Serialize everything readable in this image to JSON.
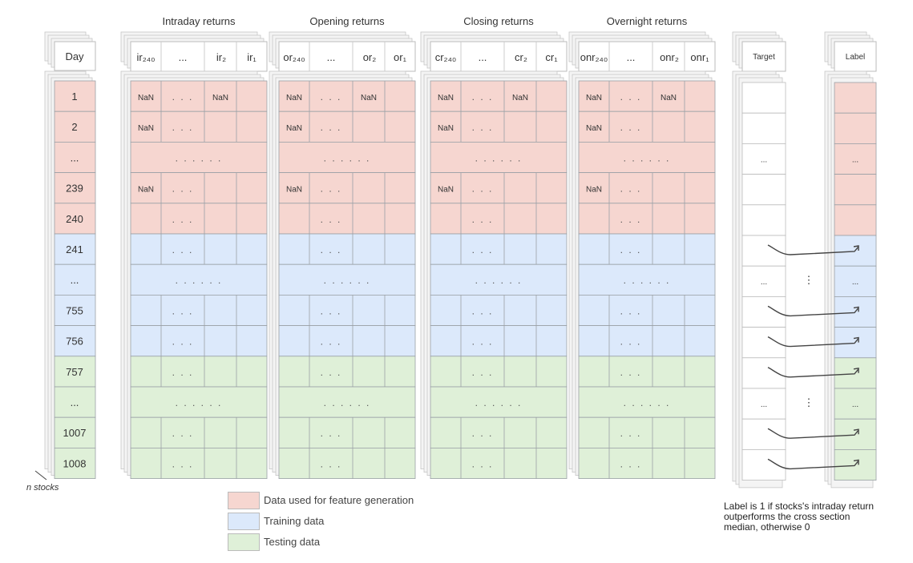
{
  "group_titles": [
    "Intraday returns",
    "Opening returns",
    "Closing returns",
    "Overnight returns"
  ],
  "group_headers": [
    [
      "ir₂₄₀",
      "...",
      "ir₂",
      "ir₁"
    ],
    [
      "or₂₄₀",
      "...",
      "or₂",
      "or₁"
    ],
    [
      "cr₂₄₀",
      "...",
      "cr₂",
      "cr₁"
    ],
    [
      "onr₂₄₀",
      "...",
      "onr₂",
      "onr₁"
    ]
  ],
  "day_header": "Day",
  "day_rows": [
    "1",
    "2",
    "...",
    "239",
    "240",
    "241",
    "...",
    "755",
    "756",
    "757",
    "...",
    "1007",
    "1008"
  ],
  "row_phase": [
    "feature",
    "feature",
    "feature",
    "feature",
    "feature",
    "train",
    "train",
    "train",
    "train",
    "test",
    "test",
    "test",
    "test"
  ],
  "nan_label": "NaN",
  "dots_short": ". . .",
  "dots_wide": ". . .    . . .",
  "target_header": "Target",
  "label_header": "Label",
  "ellipsis": "...",
  "vertical_ellipsis": "⋮",
  "stocks_label": "n stocks",
  "legend": [
    {
      "label": "Data used for feature generation",
      "color": "#f6d6d0"
    },
    {
      "label": "Training data",
      "color": "#dce9fb"
    },
    {
      "label": "Testing data",
      "color": "#dff0d8"
    }
  ],
  "note": "Label is 1 if stocks's intraday return outperforms the cross section median, otherwise 0",
  "colors": {
    "feature": "#f6d6d0",
    "train": "#dce9fb",
    "test": "#dff0d8",
    "line": "#9aa0a6",
    "shadow": "#f4f4f4"
  }
}
